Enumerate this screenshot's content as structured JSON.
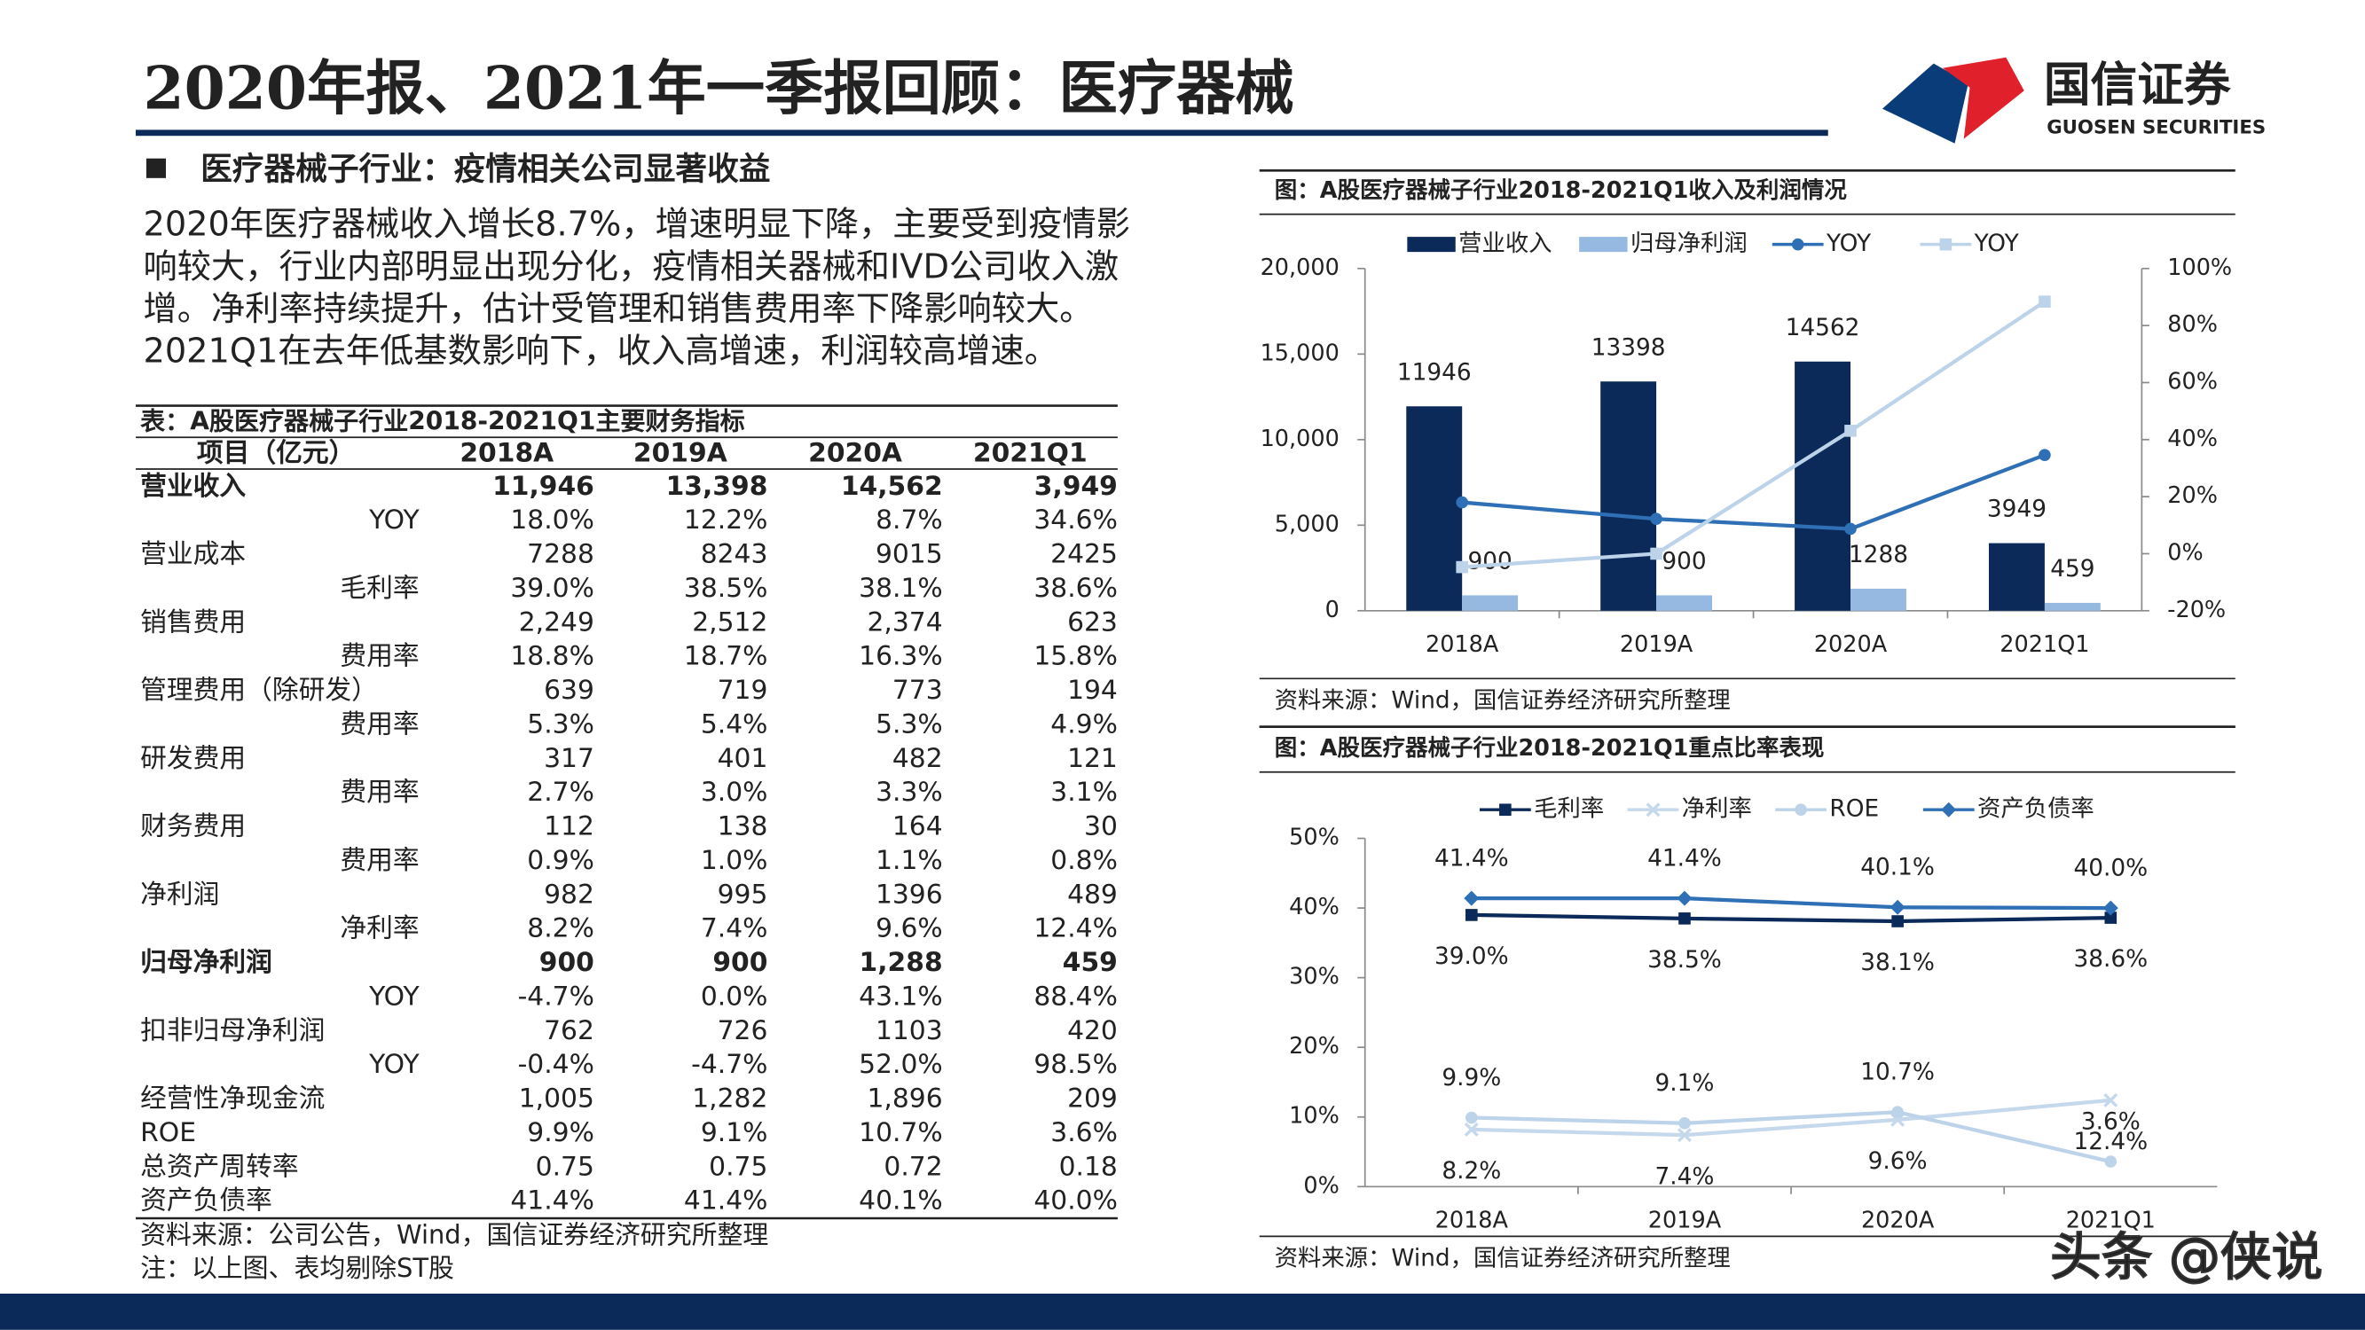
{
  "header": {
    "title": "2020年报、2021年一季报回顾：医疗器械",
    "logo": "国信证券",
    "logo_en": "GUOSEN SECURITIES"
  },
  "section": {
    "heading": "医疗器械子行业：疫情相关公司显著收益",
    "paragraph": [
      "2020年医疗器械收入增长8.7%，增速明显下降，主要受到疫情影",
      "响较大，行业内部明显出现分化，疫情相关器械和IVD公司收入激",
      "增。净利率持续提升，估计受管理和销售费用率下降影响较大。",
      "2021Q1在去年低基数影响下，收入高增速，利润较高增速。"
    ]
  },
  "table": {
    "title": "表：A股医疗器械子行业2018-2021Q1主要财务指标",
    "header": [
      "项目（亿元）",
      "2018A",
      "2019A",
      "2020A",
      "2021Q1"
    ],
    "rows": [
      [
        "营业收入",
        "11,946",
        "13,398",
        "14,562",
        "3,949"
      ],
      [
        "YOY",
        "18.0%",
        "12.2%",
        "8.7%",
        "34.6%"
      ],
      [
        "营业成本",
        "7288",
        "8243",
        "9015",
        "2425"
      ],
      [
        "毛利率",
        "39.0%",
        "38.5%",
        "38.1%",
        "38.6%"
      ],
      [
        "销售费用",
        "2,249",
        "2,512",
        "2,374",
        "623"
      ],
      [
        "费用率",
        "18.8%",
        "18.7%",
        "16.3%",
        "15.8%"
      ],
      [
        "管理费用（除研发）",
        "639",
        "719",
        "773",
        "194"
      ],
      [
        "费用率",
        "5.3%",
        "5.4%",
        "5.3%",
        "4.9%"
      ],
      [
        "研发费用",
        "317",
        "401",
        "482",
        "121"
      ],
      [
        "费用率",
        "2.7%",
        "3.0%",
        "3.3%",
        "3.1%"
      ],
      [
        "财务费用",
        "112",
        "138",
        "164",
        "30"
      ],
      [
        "费用率",
        "0.9%",
        "1.0%",
        "1.1%",
        "0.8%"
      ],
      [
        "净利润",
        "982",
        "995",
        "1396",
        "489"
      ],
      [
        "净利率",
        "8.2%",
        "7.4%",
        "9.6%",
        "12.4%"
      ],
      [
        "归母净利润",
        "900",
        "900",
        "1,288",
        "459"
      ],
      [
        "YOY",
        "-4.7%",
        "0.0%",
        "43.1%",
        "88.4%"
      ],
      [
        "扣非归母净利润",
        "762",
        "726",
        "1103",
        "420"
      ],
      [
        "YOY",
        "-0.4%",
        "-4.7%",
        "52.0%",
        "98.5%"
      ],
      [
        "经营性净现金流",
        "1,005",
        "1,282",
        "1,896",
        "209"
      ],
      [
        "ROE",
        "9.9%",
        "9.1%",
        "10.7%",
        "3.6%"
      ],
      [
        "总资产周转率",
        "0.75",
        "0.75",
        "0.72",
        "0.18"
      ],
      [
        "资产负债率",
        "41.4%",
        "41.4%",
        "40.1%",
        "40.0%"
      ]
    ],
    "notes": [
      "资料来源：公司公告，Wind，国信证券经济研究所整理",
      "注：以上图、表均剔除ST股"
    ]
  },
  "chart_data": [
    {
      "type": "bar_line",
      "title": "图：A股医疗器械子行业2018-2021Q1收入及利润情况",
      "source": "资料来源：Wind，国信证券经济研究所整理",
      "categories": [
        "2018A",
        "2019A",
        "2020A",
        "2021Q1"
      ],
      "series": [
        {
          "name": "营业收入",
          "kind": "bar",
          "color": "#0b2a5a",
          "values": [
            11946,
            13398,
            14562,
            3949
          ]
        },
        {
          "name": "归母净利润",
          "kind": "bar",
          "color": "#95b9e0",
          "values": [
            900,
            900,
            1288,
            459
          ]
        },
        {
          "name": "YOY",
          "kind": "line",
          "axis": "y2",
          "marker": "circle",
          "color": "#2e6fb5",
          "values": [
            18.0,
            12.2,
            8.7,
            34.6
          ]
        },
        {
          "name": "YOY",
          "kind": "line",
          "axis": "y2",
          "marker": "square",
          "color": "#bcd3ea",
          "values": [
            -4.7,
            0.0,
            43.1,
            88.4
          ]
        }
      ],
      "ylim": [
        0,
        20000
      ],
      "yticks": [
        0,
        {
          "value": 5000,
          "label": "5,000"
        },
        {
          "value": 10000,
          "label": "10,000"
        },
        {
          "value": 15000,
          "label": "15,000"
        },
        {
          "value": 20000,
          "label": "20,000"
        }
      ],
      "y2lim": [
        -20,
        100
      ],
      "y2ticks": [
        {
          "value": -20,
          "label": "-20%"
        },
        {
          "value": 0,
          "label": "0%"
        },
        {
          "value": 20,
          "label": "20%"
        },
        {
          "value": 40,
          "label": "40%"
        },
        {
          "value": 60,
          "label": "60%"
        },
        {
          "value": 80,
          "label": "80%"
        },
        {
          "value": 100,
          "label": "100%"
        }
      ],
      "grid": false
    },
    {
      "type": "line",
      "title": "图：A股医疗器械子行业2018-2021Q1重点比率表现",
      "source": "资料来源：Wind，国信证券经济研究所整理",
      "categories": [
        "2018A",
        "2019A",
        "2020A",
        "2021Q1"
      ],
      "series": [
        {
          "name": "毛利率",
          "marker": "square",
          "color": "#0b2a5a",
          "label_position": "below",
          "values": [
            39.0,
            38.5,
            38.1,
            38.6
          ],
          "value_labels": [
            "39.0%",
            "38.5%",
            "38.1%",
            "38.6%"
          ]
        },
        {
          "name": "净利率",
          "marker": "x",
          "color": "#c5d8ec",
          "label_position": "below",
          "values": [
            8.2,
            7.4,
            9.6,
            12.4
          ],
          "value_labels": [
            "8.2%",
            "7.4%",
            "9.6%",
            "12.4%"
          ]
        },
        {
          "name": "ROE",
          "marker": "circle",
          "color": "#bcd3ea",
          "label_position": "above",
          "values": [
            9.9,
            9.1,
            10.7,
            3.6
          ],
          "value_labels": [
            "9.9%",
            "9.1%",
            "10.7%",
            "3.6%"
          ]
        },
        {
          "name": "资产负债率",
          "marker": "diamond",
          "color": "#2e6fb5",
          "label_position": "above",
          "values": [
            41.4,
            41.4,
            40.1,
            40.0
          ],
          "value_labels": [
            "41.4%",
            "41.4%",
            "40.1%",
            "40.0%"
          ]
        }
      ],
      "ylim": [
        0,
        50
      ],
      "yticks": [
        {
          "value": 0,
          "label": "0%"
        },
        {
          "value": 10,
          "label": "10%"
        },
        {
          "value": 20,
          "label": "20%"
        },
        {
          "value": 30,
          "label": "30%"
        },
        {
          "value": 40,
          "label": "40%"
        },
        {
          "value": 50,
          "label": "50%"
        }
      ],
      "grid": false
    }
  ],
  "watermark": "头条 @侠说"
}
